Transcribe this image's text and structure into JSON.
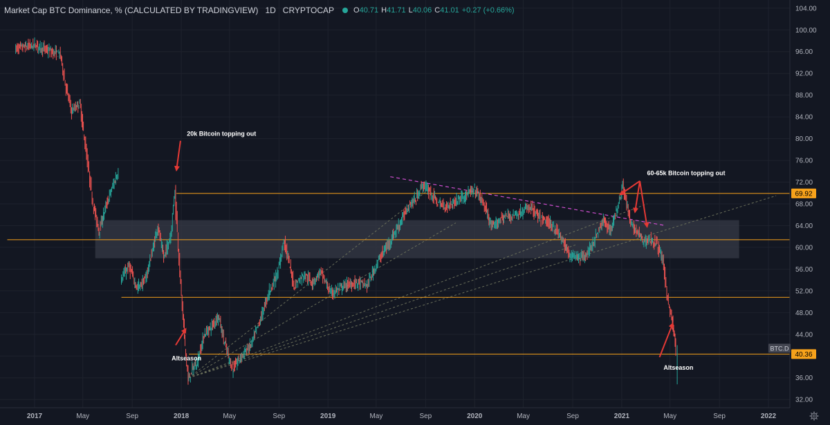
{
  "header": {
    "title": "Market Cap BTC Dominance, % (CALCULATED BY TRADINGVIEW)",
    "interval": "1D",
    "exchange": "CRYPTOCAP",
    "o_label": "O",
    "o_value": "40.71",
    "h_label": "H",
    "h_value": "41.71",
    "l_label": "L",
    "l_value": "40.06",
    "c_label": "C",
    "c_value": "41.01",
    "change": "+0.27 (+0.66%)"
  },
  "colors": {
    "background": "#131722",
    "grid": "#1e222d",
    "up": "#26a69a",
    "down": "#ef5350",
    "level": "#f7a21b",
    "zone": "#363a45",
    "trend": "#d04fd0",
    "fan": "#6a6f5a",
    "arrow": "#e53935",
    "axis_text": "#b2b5be"
  },
  "chart_data": {
    "type": "candlestick",
    "ylim": [
      30.5,
      105.5
    ],
    "y_ticks": [
      "32.00",
      "36.00",
      "40.00",
      "44.00",
      "48.00",
      "52.00",
      "56.00",
      "60.00",
      "64.00",
      "68.00",
      "72.00",
      "76.00",
      "80.00",
      "84.00",
      "88.00",
      "92.00",
      "96.00",
      "100.00",
      "104.00"
    ],
    "x_ticks": [
      {
        "label": "2017",
        "date": "2017-01-01"
      },
      {
        "label": "May",
        "date": "2017-05-01"
      },
      {
        "label": "Sep",
        "date": "2017-09-01"
      },
      {
        "label": "2018",
        "date": "2018-01-01"
      },
      {
        "label": "May",
        "date": "2018-05-01"
      },
      {
        "label": "Sep",
        "date": "2018-09-01"
      },
      {
        "label": "2019",
        "date": "2019-01-01"
      },
      {
        "label": "May",
        "date": "2019-05-01"
      },
      {
        "label": "Sep",
        "date": "2019-09-01"
      },
      {
        "label": "2020",
        "date": "2020-01-01"
      },
      {
        "label": "May",
        "date": "2020-05-01"
      },
      {
        "label": "Sep",
        "date": "2020-09-01"
      },
      {
        "label": "2021",
        "date": "2021-01-01"
      },
      {
        "label": "May",
        "date": "2021-05-01"
      },
      {
        "label": "Sep",
        "date": "2021-09-01"
      },
      {
        "label": "2022",
        "date": "2022-01-01"
      }
    ],
    "series": [
      {
        "anchors": [
          [
            "2016-11-15",
            96.5
          ],
          [
            "2017-01-05",
            97.2
          ],
          [
            "2017-02-10",
            96.0
          ],
          [
            "2017-03-08",
            95.5
          ],
          [
            "2017-03-20",
            90.0
          ],
          [
            "2017-04-05",
            85.0
          ],
          [
            "2017-04-25",
            86.5
          ],
          [
            "2017-05-10",
            78.0
          ],
          [
            "2017-05-28",
            68.0
          ],
          [
            "2017-06-12",
            63.0
          ],
          [
            "2017-06-25",
            66.5
          ],
          [
            "2017-07-10",
            70.0
          ],
          [
            "2017-07-30",
            74.0
          ]
        ]
      },
      {
        "anchors": [
          [
            "2017-08-05",
            54.0
          ],
          [
            "2017-08-25",
            56.5
          ],
          [
            "2017-09-15",
            52.5
          ],
          [
            "2017-10-05",
            54.0
          ],
          [
            "2017-10-25",
            60.0
          ],
          [
            "2017-11-05",
            64.0
          ],
          [
            "2017-11-20",
            58.0
          ],
          [
            "2017-12-08",
            62.5
          ],
          [
            "2017-12-18",
            71.0
          ],
          [
            "2017-12-26",
            60.0
          ],
          [
            "2018-01-05",
            49.0
          ],
          [
            "2018-01-12",
            42.0
          ],
          [
            "2018-01-20",
            35.5
          ],
          [
            "2018-01-30",
            37.5
          ],
          [
            "2018-02-12",
            39.0
          ],
          [
            "2018-03-01",
            44.0
          ],
          [
            "2018-03-20",
            45.5
          ],
          [
            "2018-04-05",
            47.5
          ],
          [
            "2018-04-20",
            42.5
          ],
          [
            "2018-05-10",
            37.5
          ],
          [
            "2018-06-01",
            40.0
          ],
          [
            "2018-06-25",
            42.0
          ],
          [
            "2018-07-15",
            46.0
          ],
          [
            "2018-08-10",
            52.0
          ],
          [
            "2018-09-01",
            55.5
          ],
          [
            "2018-09-15",
            61.5
          ],
          [
            "2018-10-10",
            53.0
          ],
          [
            "2018-11-05",
            55.0
          ],
          [
            "2018-11-25",
            53.5
          ],
          [
            "2018-12-15",
            55.5
          ],
          [
            "2019-01-10",
            51.5
          ],
          [
            "2019-02-15",
            53.0
          ],
          [
            "2019-03-15",
            53.5
          ],
          [
            "2019-04-10",
            53.0
          ],
          [
            "2019-05-01",
            56.5
          ],
          [
            "2019-05-15",
            58.5
          ],
          [
            "2019-06-05",
            61.0
          ],
          [
            "2019-06-20",
            63.0
          ],
          [
            "2019-07-05",
            65.0
          ],
          [
            "2019-07-20",
            67.5
          ],
          [
            "2019-08-10",
            69.0
          ],
          [
            "2019-08-25",
            71.5
          ],
          [
            "2019-09-10",
            70.5
          ],
          [
            "2019-10-05",
            68.0
          ],
          [
            "2019-10-25",
            67.5
          ],
          [
            "2019-11-15",
            68.5
          ],
          [
            "2019-12-20",
            70.0
          ],
          [
            "2020-01-05",
            70.5
          ],
          [
            "2020-01-25",
            68.0
          ],
          [
            "2020-02-15",
            63.5
          ],
          [
            "2020-03-10",
            65.5
          ],
          [
            "2020-04-10",
            66.0
          ],
          [
            "2020-04-30",
            66.5
          ],
          [
            "2020-05-20",
            67.5
          ],
          [
            "2020-06-10",
            65.5
          ],
          [
            "2020-07-05",
            64.5
          ],
          [
            "2020-07-25",
            63.0
          ],
          [
            "2020-08-10",
            61.0
          ],
          [
            "2020-08-25",
            58.5
          ],
          [
            "2020-09-10",
            58.5
          ],
          [
            "2020-09-25",
            58.0
          ],
          [
            "2020-10-15",
            59.5
          ],
          [
            "2020-11-05",
            63.0
          ],
          [
            "2020-11-20",
            65.0
          ],
          [
            "2020-12-05",
            63.0
          ],
          [
            "2020-12-20",
            66.5
          ],
          [
            "2021-01-05",
            71.5
          ],
          [
            "2021-01-15",
            68.0
          ],
          [
            "2021-01-25",
            64.0
          ],
          [
            "2021-02-10",
            63.0
          ],
          [
            "2021-02-25",
            61.0
          ],
          [
            "2021-03-15",
            61.5
          ],
          [
            "2021-04-01",
            60.5
          ],
          [
            "2021-04-15",
            57.5
          ],
          [
            "2021-04-25",
            51.5
          ],
          [
            "2021-05-05",
            47.5
          ],
          [
            "2021-05-12",
            44.5
          ],
          [
            "2021-05-17",
            41.0
          ]
        ]
      }
    ],
    "levels": [
      69.92,
      61.4,
      50.8,
      40.36
    ],
    "zone": {
      "y_top": 65.0,
      "y_bottom": 58.0,
      "x_start": "2017-06-01",
      "x_end": "2021-10-20"
    },
    "trend_line": {
      "from": [
        "2019-06-05",
        73.0
      ],
      "to": [
        "2021-04-20",
        64.0
      ]
    },
    "fan_origin": [
      "2018-01-20",
      36.0
    ],
    "fan_targets": [
      [
        "2019-09-15",
        71.0
      ],
      [
        "2019-11-15",
        64.5
      ],
      [
        "2020-09-10",
        60.5
      ],
      [
        "2021-03-05",
        68.0
      ],
      [
        "2022-01-20",
        69.5
      ]
    ],
    "price_labels": [
      {
        "text": "69.92",
        "value": 69.92
      },
      {
        "text": "40.36",
        "value": 40.36
      }
    ],
    "symbol_label": "BTC.D",
    "annotations": [
      {
        "text": "20k Bitcoin topping out",
        "x": "2018-01-15",
        "y": 80.5
      },
      {
        "text": "60-65k Bitcoin topping out",
        "x": "2021-03-05",
        "y": 73.3
      },
      {
        "text": "Altseason",
        "x": "2017-12-08",
        "y": 39.2
      },
      {
        "text": "Altseason",
        "x": "2021-04-15",
        "y": 37.5
      }
    ],
    "arrows": [
      {
        "from": [
          "2017-12-30",
          79.6
        ],
        "to": [
          "2017-12-20",
          74.2
        ]
      },
      {
        "from": [
          "2017-12-18",
          42.0
        ],
        "to": [
          "2018-01-12",
          45.0
        ]
      },
      {
        "from": [
          "2021-02-15",
          72.2
        ],
        "to": [
          "2020-12-28",
          69.7
        ]
      },
      {
        "from": [
          "2021-02-15",
          72.2
        ],
        "to": [
          "2021-02-03",
          66.5
        ]
      },
      {
        "from": [
          "2021-02-15",
          72.2
        ],
        "to": [
          "2021-03-05",
          63.8
        ]
      },
      {
        "from": [
          "2021-04-05",
          39.8
        ],
        "to": [
          "2021-05-08",
          46.0
        ]
      }
    ]
  }
}
